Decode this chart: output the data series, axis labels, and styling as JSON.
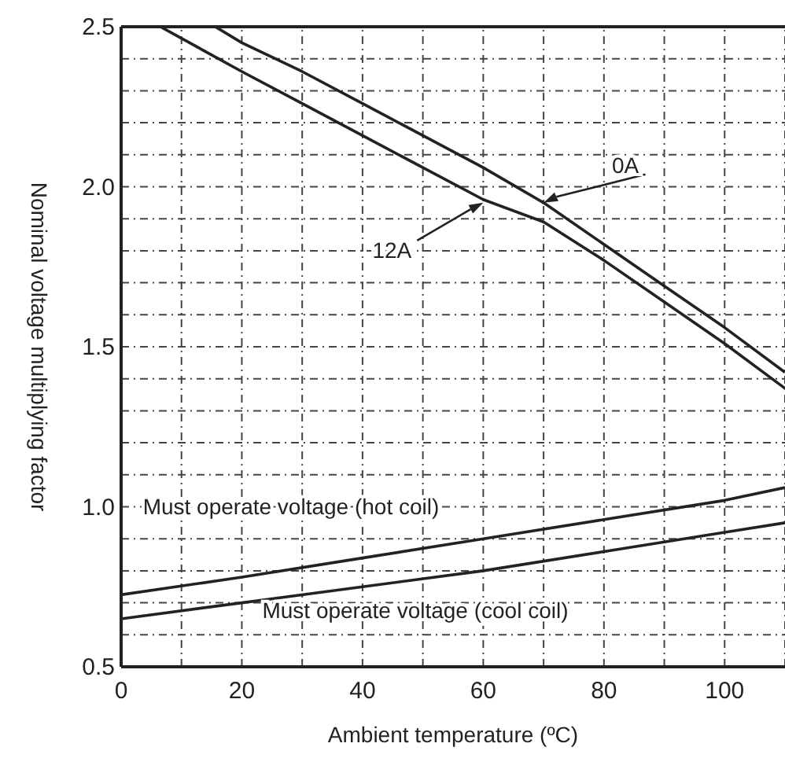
{
  "chart_data": {
    "type": "line",
    "xlabel": "Ambient temperature (ºC)",
    "ylabel": "Nominal voltage multiplying factor",
    "xlim": [
      0,
      110
    ],
    "ylim": [
      0.5,
      2.5
    ],
    "xticks": [
      0,
      {
        "value": 10,
        "label": null
      },
      20,
      {
        "value": 30,
        "label": null
      },
      40,
      {
        "value": 50,
        "label": null
      },
      60,
      {
        "value": 70,
        "label": null
      },
      80,
      {
        "value": 90,
        "label": null
      },
      100,
      {
        "value": 110,
        "label": null
      }
    ],
    "yticks": [
      0.5,
      {
        "value": 0.6,
        "label": null
      },
      {
        "value": 0.7,
        "label": null
      },
      {
        "value": 0.8,
        "label": null
      },
      {
        "value": 0.9,
        "label": null
      },
      "1.0",
      {
        "value": 1.1,
        "label": null
      },
      {
        "value": 1.2,
        "label": null
      },
      {
        "value": 1.3,
        "label": null
      },
      {
        "value": 1.4,
        "label": null
      },
      1.5,
      {
        "value": 1.6,
        "label": null
      },
      {
        "value": 1.7,
        "label": null
      },
      {
        "value": 1.8,
        "label": null
      },
      {
        "value": 1.9,
        "label": null
      },
      "2.0",
      {
        "value": 2.1,
        "label": null
      },
      {
        "value": 2.2,
        "label": null
      },
      {
        "value": 2.3,
        "label": null
      },
      {
        "value": 2.4,
        "label": null
      },
      2.5
    ],
    "grid": true,
    "line_style": "solid",
    "marker": "none",
    "series": [
      {
        "color": "#222222",
        "x": [
          15.6,
          20,
          30,
          40,
          50,
          60,
          70,
          80,
          90,
          100,
          110
        ],
        "values": [
          2.5,
          2.45,
          2.36,
          2.26,
          2.16,
          2.06,
          1.95,
          1.82,
          1.69,
          1.56,
          1.42
        ]
      },
      {
        "color": "#222222",
        "x": [
          6.5,
          20,
          30,
          40,
          50,
          60,
          70,
          80,
          90,
          100,
          110
        ],
        "values": [
          2.5,
          2.36,
          2.26,
          2.16,
          2.06,
          1.96,
          1.89,
          1.77,
          1.64,
          1.51,
          1.37
        ]
      },
      {
        "color": "#222222",
        "x": [
          0,
          20,
          40,
          60,
          80,
          100,
          110
        ],
        "values": [
          0.725,
          0.78,
          0.84,
          0.9,
          0.96,
          1.02,
          1.06
        ]
      },
      {
        "color": "#222222",
        "x": [
          0,
          20,
          40,
          60,
          80,
          100,
          110
        ],
        "values": [
          0.65,
          0.7,
          0.75,
          0.8,
          0.86,
          0.92,
          0.95
        ]
      }
    ],
    "annotations": [
      {
        "text": "0A",
        "x": 70,
        "y": 1.95
      },
      {
        "text": "12A",
        "x": 60,
        "y": 1.95
      },
      "Must operate voltage (hot coil)",
      "Must operate voltage (cool coil)"
    ]
  }
}
